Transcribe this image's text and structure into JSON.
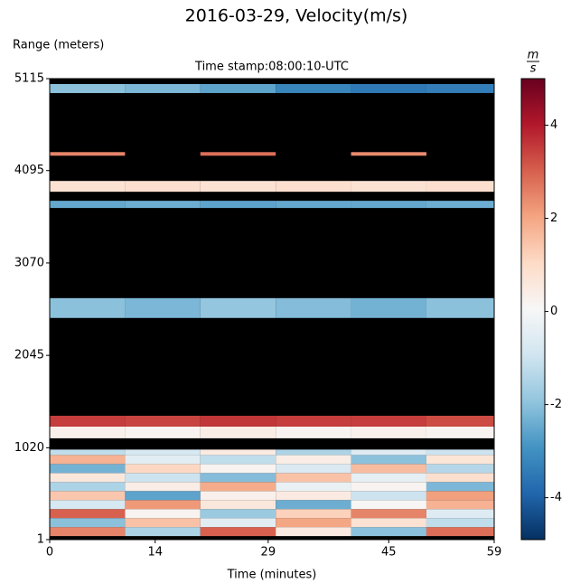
{
  "chart_data": {
    "type": "heatmap",
    "title": "2016-03-29, Velocity(m/s)",
    "subtitle": "Time stamp:08:00:10-UTC",
    "ylabel": "Range (meters)",
    "xlabel": "Time (minutes)",
    "colorbar_unit": [
      "m",
      "s"
    ],
    "colormap": "RdBu_r",
    "missing_color": "#000000",
    "x_edges": [
      0,
      10,
      20,
      30,
      40,
      50,
      59
    ],
    "y_edges": [
      1,
      40,
      140,
      240,
      340,
      440,
      540,
      640,
      740,
      840,
      940,
      1000,
      1125,
      1255,
      1375,
      2460,
      2680,
      3680,
      3760,
      3860,
      3980,
      4260,
      4300,
      4955,
      5055,
      5115
    ],
    "z": [
      [
        null,
        null,
        null,
        null,
        null,
        null
      ],
      [
        2.5,
        -1.5,
        3,
        0.5,
        -2,
        2.8
      ],
      [
        -2,
        1.5,
        -0.5,
        2,
        0.8,
        -1.2
      ],
      [
        3,
        0.2,
        -1.8,
        1.2,
        2.5,
        -0.6
      ],
      [
        -0.8,
        2.2,
        0.6,
        -2.4,
        0.1,
        1.8
      ],
      [
        1.4,
        -2.6,
        0.3,
        0.5,
        -1,
        2.1
      ],
      [
        -1.5,
        0.4,
        1.9,
        -0.3,
        0.2,
        -2.2
      ],
      [
        0.6,
        -1,
        -2.1,
        1.5,
        -0.4,
        0.9
      ],
      [
        -2.3,
        1.1,
        0.2,
        -0.7,
        1.6,
        -1.4
      ],
      [
        1.8,
        -0.5,
        -1.2,
        0.4,
        -2,
        0.7
      ],
      [
        -1.2,
        -0.8,
        0.5,
        -1.5,
        -0.6,
        -1
      ],
      [
        null,
        null,
        null,
        null,
        null,
        null
      ],
      [
        0.3,
        0.2,
        0.4,
        0.2,
        0.3,
        0.2
      ],
      [
        3.5,
        3.4,
        3.6,
        3.5,
        3.5,
        3.3
      ],
      [
        null,
        null,
        null,
        null,
        null,
        null
      ],
      [
        -2,
        -2.2,
        -1.9,
        -2.1,
        -2.3,
        -2
      ],
      [
        null,
        null,
        null,
        null,
        null,
        null
      ],
      [
        -2.5,
        -2.4,
        -2.6,
        -2.5,
        -2.5,
        -2.4
      ],
      [
        null,
        null,
        null,
        null,
        null,
        null
      ],
      [
        0.8,
        0.9,
        0.8,
        0.9,
        0.8,
        0.9
      ],
      [
        null,
        null,
        null,
        null,
        null,
        null
      ],
      [
        2.5,
        null,
        2.8,
        null,
        2.4,
        null
      ],
      [
        null,
        null,
        null,
        null,
        null,
        null
      ],
      [
        -2,
        -2.2,
        -2.6,
        -3.2,
        -3.5,
        -3.4
      ],
      [
        null,
        null,
        null,
        null,
        null,
        null
      ]
    ],
    "xlim": [
      0,
      59
    ],
    "xticks": [
      0,
      14,
      29,
      45,
      59
    ],
    "ylim": [
      1,
      5115
    ],
    "yticks": [
      1,
      1020,
      2045,
      3070,
      4095,
      5115
    ],
    "clim": [
      -4.9,
      5.0
    ],
    "cticks": [
      -4,
      -2,
      0,
      2,
      4
    ]
  }
}
